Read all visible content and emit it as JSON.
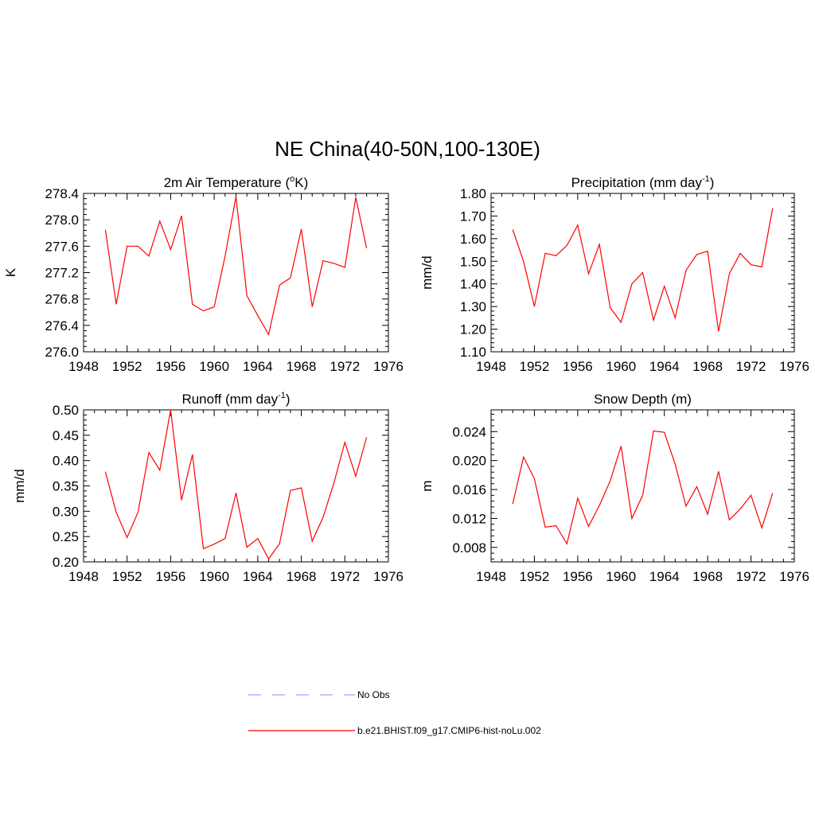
{
  "figure": {
    "title": "NE China(40-50N,100-130E)"
  },
  "legend": [
    {
      "label": "No Obs",
      "color": "#a0a0ff",
      "dash": "dashed"
    },
    {
      "label": "b.e21.BHIST.f09_g17.CMIP6-hist-noLu.002",
      "color": "#ff0000",
      "dash": "solid"
    }
  ],
  "chart_data": [
    {
      "type": "line",
      "title": "2m Air Temperature (",
      "title_sup": "o",
      "title_suffix": "K)",
      "ylabel": "K",
      "xlim": [
        1948,
        1976
      ],
      "xticks": [
        "1948",
        "1952",
        "1956",
        "1960",
        "1964",
        "1968",
        "1972",
        "1976"
      ],
      "ylim": [
        276.0,
        278.4
      ],
      "yticks": [
        "276.0",
        "276.4",
        "276.8",
        "277.2",
        "277.6",
        "278.0",
        "278.4"
      ],
      "series": [
        {
          "color": "#ff0000",
          "x": [
            1950,
            1951,
            1952,
            1953,
            1954,
            1955,
            1956,
            1957,
            1958,
            1959,
            1960,
            1961,
            1962,
            1963,
            1964,
            1965,
            1966,
            1967,
            1968,
            1969,
            1970,
            1971,
            1972,
            1973,
            1974
          ],
          "values": [
            277.85,
            276.72,
            277.6,
            277.6,
            277.45,
            277.98,
            277.55,
            278.06,
            276.72,
            276.62,
            276.68,
            277.45,
            278.35,
            276.85,
            276.55,
            276.26,
            277.01,
            277.12,
            277.86,
            276.68,
            277.38,
            277.34,
            277.28,
            278.34,
            277.57
          ]
        }
      ]
    },
    {
      "type": "line",
      "title": "Precipitation (mm day",
      "title_sup": "-1",
      "title_suffix": ")",
      "ylabel": "mm/d",
      "xlim": [
        1948,
        1976
      ],
      "xticks": [
        "1948",
        "1952",
        "1956",
        "1960",
        "1964",
        "1968",
        "1972",
        "1976"
      ],
      "ylim": [
        1.1,
        1.8
      ],
      "yticks": [
        "1.10",
        "1.20",
        "1.30",
        "1.40",
        "1.50",
        "1.60",
        "1.70",
        "1.80"
      ],
      "series": [
        {
          "color": "#ff0000",
          "x": [
            1950,
            1951,
            1952,
            1953,
            1954,
            1955,
            1956,
            1957,
            1958,
            1959,
            1960,
            1961,
            1962,
            1963,
            1964,
            1965,
            1966,
            1967,
            1968,
            1969,
            1970,
            1971,
            1972,
            1973,
            1974
          ],
          "values": [
            1.64,
            1.5,
            1.3,
            1.535,
            1.525,
            1.57,
            1.66,
            1.445,
            1.575,
            1.295,
            1.23,
            1.4,
            1.45,
            1.24,
            1.39,
            1.25,
            1.46,
            1.53,
            1.545,
            1.19,
            1.445,
            1.535,
            1.485,
            1.475,
            1.735
          ]
        }
      ]
    },
    {
      "type": "line",
      "title": "Runoff (mm day",
      "title_sup": "-1",
      "title_suffix": ")",
      "ylabel": "mm/d",
      "xlim": [
        1948,
        1976
      ],
      "xticks": [
        "1948",
        "1952",
        "1956",
        "1960",
        "1964",
        "1968",
        "1972",
        "1976"
      ],
      "ylim": [
        0.2,
        0.5
      ],
      "yticks": [
        "0.20",
        "0.25",
        "0.30",
        "0.35",
        "0.40",
        "0.45",
        "0.50"
      ],
      "series": [
        {
          "color": "#ff0000",
          "x": [
            1950,
            1951,
            1952,
            1953,
            1954,
            1955,
            1956,
            1957,
            1958,
            1959,
            1960,
            1961,
            1962,
            1963,
            1964,
            1965,
            1966,
            1967,
            1968,
            1969,
            1970,
            1971,
            1972,
            1973,
            1974
          ],
          "values": [
            0.378,
            0.298,
            0.248,
            0.298,
            0.416,
            0.381,
            0.5,
            0.322,
            0.412,
            0.226,
            0.235,
            0.246,
            0.336,
            0.229,
            0.246,
            0.206,
            0.236,
            0.341,
            0.346,
            0.241,
            0.288,
            0.356,
            0.436,
            0.369,
            0.446
          ]
        }
      ]
    },
    {
      "type": "line",
      "title": "Snow Depth (m)",
      "title_sup": "",
      "title_suffix": "",
      "ylabel": "m",
      "xlim": [
        1948,
        1976
      ],
      "xticks": [
        "1948",
        "1952",
        "1956",
        "1960",
        "1964",
        "1968",
        "1972",
        "1976"
      ],
      "ylim": [
        0.006,
        0.027
      ],
      "yticks": [
        "0.008",
        "0.012",
        "0.016",
        "0.020",
        "0.024"
      ],
      "ytick_values": [
        0.008,
        0.012,
        0.016,
        0.02,
        0.024
      ],
      "series": [
        {
          "color": "#ff0000",
          "x": [
            1950,
            1951,
            1952,
            1953,
            1954,
            1955,
            1956,
            1957,
            1958,
            1959,
            1960,
            1961,
            1962,
            1963,
            1964,
            1965,
            1966,
            1967,
            1968,
            1969,
            1970,
            1971,
            1972,
            1973,
            1974
          ],
          "values": [
            0.014,
            0.0205,
            0.0175,
            0.0108,
            0.011,
            0.0085,
            0.0148,
            0.0109,
            0.0138,
            0.0172,
            0.022,
            0.012,
            0.0152,
            0.0241,
            0.0239,
            0.0195,
            0.0137,
            0.0164,
            0.0126,
            0.0185,
            0.0118,
            0.0133,
            0.0152,
            0.0107,
            0.0155
          ]
        }
      ]
    }
  ]
}
